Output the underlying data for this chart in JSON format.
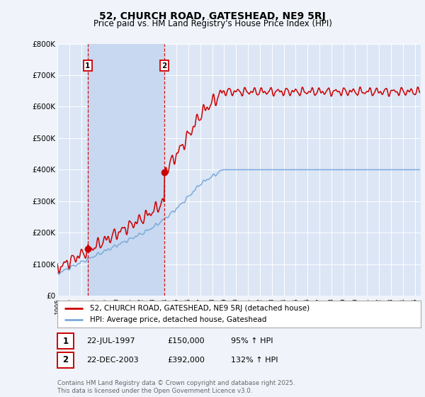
{
  "title": "52, CHURCH ROAD, GATESHEAD, NE9 5RJ",
  "subtitle": "Price paid vs. HM Land Registry's House Price Index (HPI)",
  "background_color": "#f0f4fa",
  "plot_bg_color": "#dce6f5",
  "shade_color": "#c8d8f0",
  "transaction1": {
    "date_num": 1997.55,
    "price": 150000,
    "label": "1",
    "date_str": "22-JUL-1997",
    "pct": "95% ↑ HPI"
  },
  "transaction2": {
    "date_num": 2003.97,
    "price": 392000,
    "label": "2",
    "date_str": "22-DEC-2003",
    "pct": "132% ↑ HPI"
  },
  "ylim": [
    0,
    800000
  ],
  "xlim_start": 1995.0,
  "xlim_end": 2025.5,
  "legend_label1": "52, CHURCH ROAD, GATESHEAD, NE9 5RJ (detached house)",
  "legend_label2": "HPI: Average price, detached house, Gateshead",
  "footnote": "Contains HM Land Registry data © Crown copyright and database right 2025.\nThis data is licensed under the Open Government Licence v3.0.",
  "red_color": "#cc0000",
  "blue_color": "#7aabdb",
  "table_row1": [
    "1",
    "22-JUL-1997",
    "£150,000",
    "95% ↑ HPI"
  ],
  "table_row2": [
    "2",
    "22-DEC-2003",
    "£392,000",
    "132% ↑ HPI"
  ]
}
